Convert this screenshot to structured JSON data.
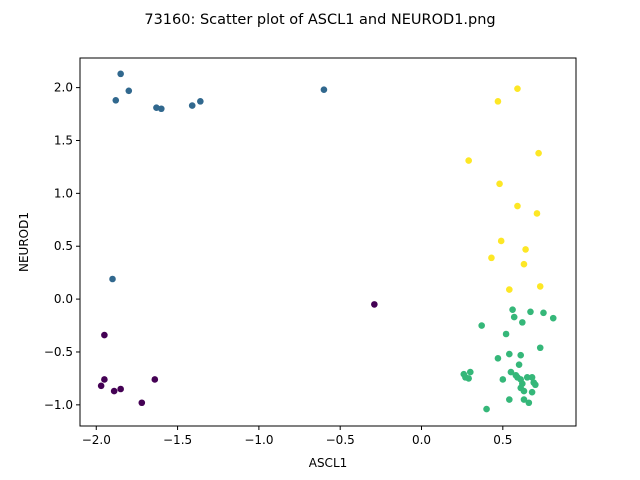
{
  "chart_data": {
    "type": "scatter",
    "title": "73160: Scatter plot of ASCL1 and NEUROD1.png",
    "xlabel": "ASCL1",
    "ylabel": "NEUROD1",
    "xlim": [
      -2.1,
      0.95
    ],
    "ylim": [
      -1.2,
      2.28
    ],
    "grid": false,
    "xticks": [
      -2.0,
      -1.5,
      -1.0,
      -0.5,
      0.0,
      0.5
    ],
    "xtick_labels": [
      "−2.0",
      "−1.5",
      "−1.0",
      "−0.5",
      "0.0",
      "0.5"
    ],
    "yticks": [
      -1.0,
      -0.5,
      0.0,
      0.5,
      1.0,
      1.5,
      2.0
    ],
    "ytick_labels": [
      "−1.0",
      "−0.5",
      "0.0",
      "0.5",
      "1.0",
      "1.5",
      "2.0"
    ],
    "series": [
      {
        "color": "#440154",
        "points": [
          [
            -1.97,
            -0.82
          ],
          [
            -1.95,
            -0.34
          ],
          [
            -1.95,
            -0.76
          ],
          [
            -1.89,
            -0.87
          ],
          [
            -1.85,
            -0.85
          ],
          [
            -1.64,
            -0.76
          ],
          [
            -1.72,
            -0.98
          ],
          [
            -0.29,
            -0.05
          ]
        ]
      },
      {
        "color": "#31688e",
        "points": [
          [
            -1.85,
            2.13
          ],
          [
            -1.88,
            1.88
          ],
          [
            -1.8,
            1.97
          ],
          [
            -1.63,
            1.81
          ],
          [
            -1.6,
            1.8
          ],
          [
            -1.41,
            1.83
          ],
          [
            -1.36,
            1.87
          ],
          [
            -0.6,
            1.98
          ],
          [
            -1.9,
            0.19
          ]
        ]
      },
      {
        "color": "#35b779",
        "points": [
          [
            0.56,
            -0.1
          ],
          [
            0.57,
            -0.17
          ],
          [
            0.67,
            -0.12
          ],
          [
            0.75,
            -0.13
          ],
          [
            0.81,
            -0.18
          ],
          [
            0.37,
            -0.25
          ],
          [
            0.62,
            -0.22
          ],
          [
            0.52,
            -0.33
          ],
          [
            0.73,
            -0.46
          ],
          [
            0.47,
            -0.56
          ],
          [
            0.54,
            -0.52
          ],
          [
            0.61,
            -0.53
          ],
          [
            0.6,
            -0.62
          ],
          [
            0.26,
            -0.71
          ],
          [
            0.3,
            -0.69
          ],
          [
            0.27,
            -0.74
          ],
          [
            0.29,
            -0.75
          ],
          [
            0.55,
            -0.69
          ],
          [
            0.58,
            -0.72
          ],
          [
            0.59,
            -0.74
          ],
          [
            0.61,
            -0.76
          ],
          [
            0.65,
            -0.74
          ],
          [
            0.68,
            -0.74
          ],
          [
            0.69,
            -0.79
          ],
          [
            0.7,
            -0.81
          ],
          [
            0.62,
            -0.8
          ],
          [
            0.61,
            -0.84
          ],
          [
            0.63,
            -0.87
          ],
          [
            0.68,
            -0.88
          ],
          [
            0.5,
            -0.76
          ],
          [
            0.54,
            -0.95
          ],
          [
            0.63,
            -0.95
          ],
          [
            0.66,
            -0.98
          ],
          [
            0.4,
            -1.04
          ]
        ]
      },
      {
        "color": "#fde725",
        "points": [
          [
            0.59,
            1.99
          ],
          [
            0.47,
            1.87
          ],
          [
            0.72,
            1.38
          ],
          [
            0.29,
            1.31
          ],
          [
            0.48,
            1.09
          ],
          [
            0.59,
            0.88
          ],
          [
            0.71,
            0.81
          ],
          [
            0.49,
            0.55
          ],
          [
            0.64,
            0.47
          ],
          [
            0.43,
            0.39
          ],
          [
            0.63,
            0.33
          ],
          [
            0.73,
            0.12
          ],
          [
            0.54,
            0.09
          ]
        ]
      }
    ]
  }
}
